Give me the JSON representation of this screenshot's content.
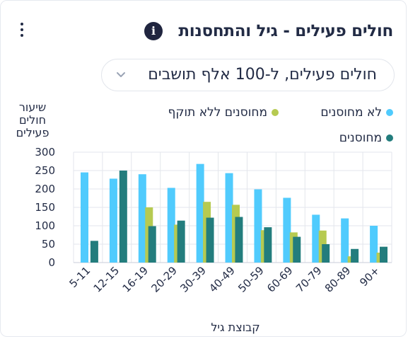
{
  "header": {
    "title": "חולים פעילים - גיל והתחסנות",
    "info_icon": "info-icon",
    "menu_icon": "kebab-menu-icon"
  },
  "selector": {
    "value": "חולים פעילים, ל-100 אלף תושבים",
    "icon": "chevron-down-icon"
  },
  "colors": {
    "not_vaccinated": "#50cbfd",
    "expired": "#b6ca51",
    "vaccinated": "#237d7d"
  },
  "chart_data": {
    "type": "bar",
    "ylabel": "שיעור חולים פעילים",
    "xlabel": "קבוצת גיל",
    "ylim": [
      0,
      300
    ],
    "yticks": [
      0,
      50,
      100,
      150,
      200,
      250,
      300
    ],
    "grid": true,
    "legend_position": "top",
    "categories": [
      "5-11",
      "12-15",
      "16-19",
      "20-29",
      "30-39",
      "40-49",
      "50-59",
      "60-69",
      "70-79",
      "80-89",
      "90+"
    ],
    "series": [
      {
        "name": "לא מחוסנים",
        "color": "#50cbfd",
        "values": [
          245,
          228,
          240,
          203,
          268,
          243,
          199,
          176,
          130,
          120,
          100
        ]
      },
      {
        "name": "מחוסנים ללא תוקף",
        "color": "#b6ca51",
        "values": [
          null,
          null,
          150,
          103,
          165,
          157,
          88,
          82,
          87,
          17,
          27
        ]
      },
      {
        "name": "מחוסנים",
        "color": "#237d7d",
        "values": [
          59,
          250,
          99,
          114,
          122,
          124,
          96,
          70,
          50,
          37,
          43
        ]
      }
    ]
  }
}
